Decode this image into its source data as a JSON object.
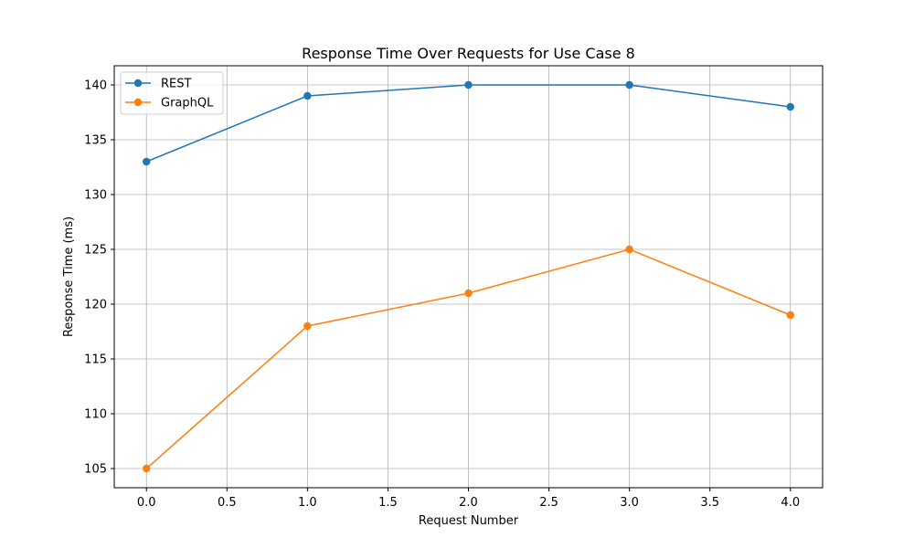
{
  "chart_data": {
    "type": "line",
    "title": "Response Time Over Requests for Use Case 8",
    "xlabel": "Request Number",
    "ylabel": "Response Time (ms)",
    "xlim": [
      -0.2,
      4.2
    ],
    "ylim": [
      103.25,
      141.75
    ],
    "x_ticks": [
      "0.0",
      "0.5",
      "1.0",
      "1.5",
      "2.0",
      "2.5",
      "3.0",
      "3.5",
      "4.0"
    ],
    "y_ticks": [
      "105",
      "110",
      "115",
      "120",
      "125",
      "130",
      "135",
      "140"
    ],
    "grid": true,
    "legend_position": "top-left",
    "x": [
      0,
      1,
      2,
      3,
      4
    ],
    "series": [
      {
        "name": "REST",
        "color": "#1f77b4",
        "marker": "circle",
        "values": [
          133,
          139,
          140,
          140,
          138
        ]
      },
      {
        "name": "GraphQL",
        "color": "#ff7f0e",
        "marker": "circle",
        "values": [
          105,
          118,
          121,
          125,
          119
        ]
      }
    ]
  }
}
